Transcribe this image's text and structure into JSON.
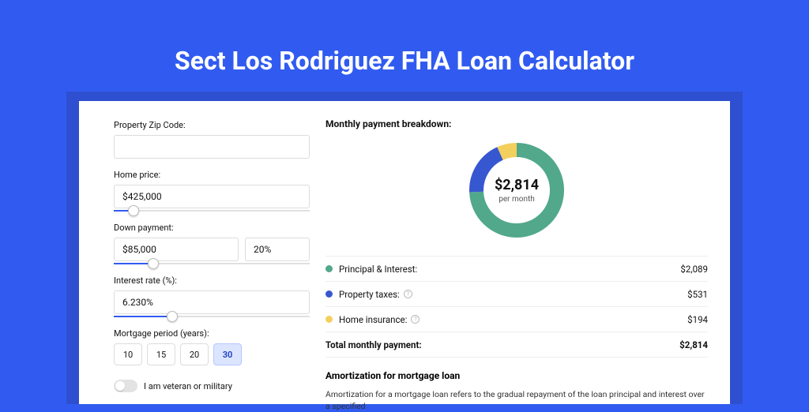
{
  "colors": {
    "page_bg": "#315bf0",
    "panel_shadow": "#2e4fcf",
    "panel_bg": "#ffffff",
    "input_border": "#dcdcdc",
    "slider_track": "#e0e0e0",
    "slider_fill": "#315bf0",
    "active_btn_bg": "#dbe5ff",
    "active_btn_border": "#b6c7ff"
  },
  "title": "Sect Los Rodriguez FHA Loan Calculator",
  "form": {
    "zip_label": "Property Zip Code:",
    "zip_value": "",
    "home_price_label": "Home price:",
    "home_price_value": "$425,000",
    "home_price_slider_pct": 10,
    "down_label": "Down payment:",
    "down_amount": "$85,000",
    "down_pct": "20%",
    "down_slider_pct": 20,
    "rate_label": "Interest rate (%):",
    "rate_value": "6.230%",
    "rate_slider_pct": 30,
    "period_label": "Mortgage period (years):",
    "periods": [
      "10",
      "15",
      "20",
      "30"
    ],
    "period_active_index": 3,
    "veteran_label": "I am veteran or military",
    "veteran_on": false
  },
  "breakdown": {
    "title": "Monthly payment breakdown:",
    "donut": {
      "amount": "$2,814",
      "sub": "per month",
      "ring_width": 18,
      "slices": [
        {
          "color": "#51a88a",
          "pct": 74.2
        },
        {
          "color": "#3757d0",
          "pct": 18.9
        },
        {
          "color": "#f3cf5e",
          "pct": 6.9
        }
      ]
    },
    "items": [
      {
        "color": "#51a88a",
        "label": "Principal & Interest:",
        "value": "$2,089",
        "info": false
      },
      {
        "color": "#3757d0",
        "label": "Property taxes:",
        "value": "$531",
        "info": true
      },
      {
        "color": "#f3cf5e",
        "label": "Home insurance:",
        "value": "$194",
        "info": true
      }
    ],
    "total_label": "Total monthly payment:",
    "total_value": "$2,814"
  },
  "amort": {
    "title": "Amortization for mortgage loan",
    "text": "Amortization for a mortgage loan refers to the gradual repayment of the loan principal and interest over a specified"
  }
}
